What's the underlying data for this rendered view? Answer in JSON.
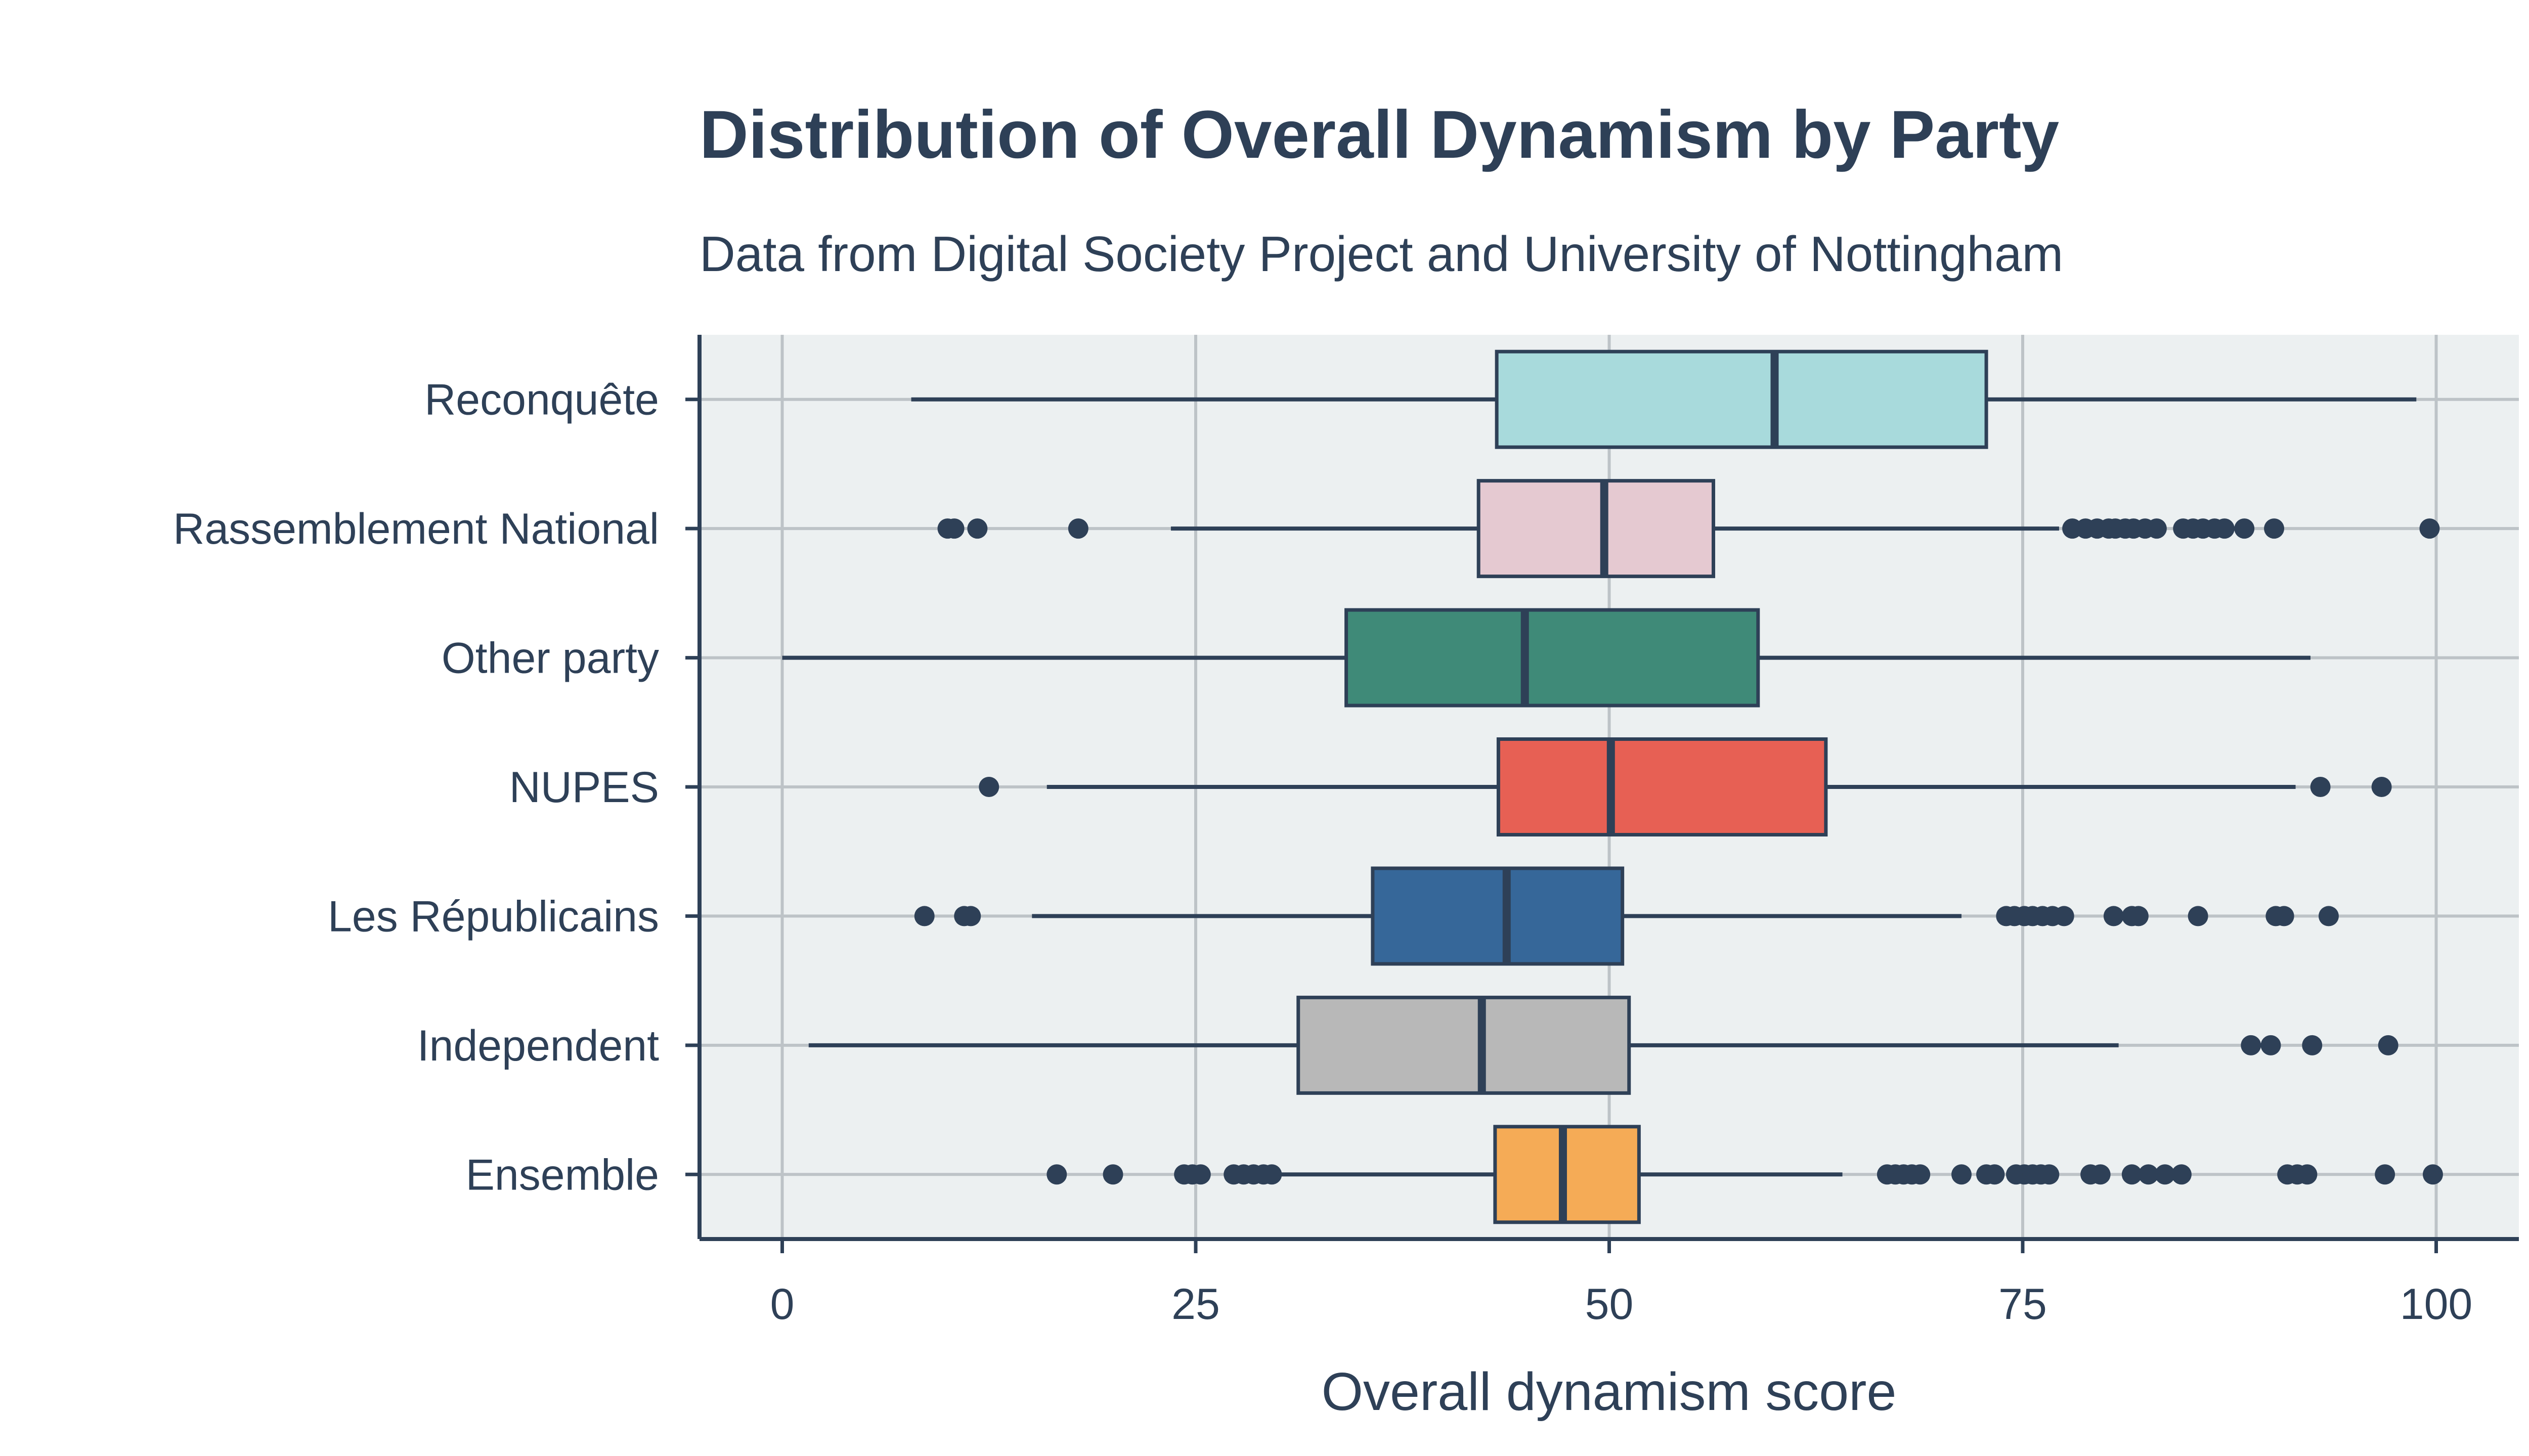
{
  "chart_data": {
    "type": "boxplot",
    "orientation": "horizontal",
    "title": "Distribution of Overall Dynamism by Party",
    "subtitle": "Data from Digital Society Project and University of Nottingham",
    "xlabel": "Overall dynamism score",
    "ylabel": "",
    "xlim": [
      -5,
      105
    ],
    "x_ticks": [
      0,
      25,
      50,
      75,
      100
    ],
    "grid": true,
    "legend": "none",
    "colors": {
      "text": "#2e4057",
      "panel_background": "#ecf0f1",
      "grid": "#bdc3c7",
      "box_outline": "#2e4057",
      "outlier": "#2e4057"
    },
    "categories": [
      "Reconquête",
      "Rassemblement National",
      "Other party",
      "NUPES",
      "Les Républicains",
      "Independent",
      "Ensemble"
    ],
    "series": [
      {
        "category": "Reconquête",
        "color": "#a8dadc",
        "whisker_low": 7.8,
        "q1": 43.2,
        "median": 60.0,
        "q3": 72.8,
        "whisker_high": 98.8,
        "outliers": []
      },
      {
        "category": "Rassemblement National",
        "color": "#e5c9d1",
        "whisker_low": 23.5,
        "q1": 42.1,
        "median": 49.7,
        "q3": 56.3,
        "whisker_high": 77.2,
        "outliers": [
          10.0,
          10.4,
          11.8,
          17.9,
          78.0,
          78.8,
          79.5,
          80.2,
          80.6,
          81.2,
          81.7,
          82.4,
          83.1,
          84.7,
          85.3,
          85.9,
          86.6,
          87.2,
          88.4,
          90.2,
          99.6
        ]
      },
      {
        "category": "Other party",
        "color": "#3f8a78",
        "whisker_low": 0.0,
        "q1": 34.1,
        "median": 44.9,
        "q3": 59.0,
        "whisker_high": 92.4,
        "outliers": []
      },
      {
        "category": "NUPES",
        "color": "#e76054",
        "whisker_low": 16.0,
        "q1": 43.3,
        "median": 50.1,
        "q3": 63.1,
        "whisker_high": 91.5,
        "outliers": [
          12.5,
          93.0,
          96.7
        ]
      },
      {
        "category": "Les Républicains",
        "color": "#366799",
        "whisker_low": 15.1,
        "q1": 35.7,
        "median": 43.8,
        "q3": 50.8,
        "whisker_high": 71.3,
        "outliers": [
          8.6,
          11.0,
          11.4,
          74.0,
          74.5,
          75.1,
          75.6,
          76.2,
          76.8,
          77.5,
          80.5,
          81.6,
          82.0,
          85.6,
          90.3,
          90.8,
          93.5
        ]
      },
      {
        "category": "Independent",
        "color": "#b8b8b8",
        "whisker_low": 1.6,
        "q1": 31.2,
        "median": 42.3,
        "q3": 51.2,
        "whisker_high": 80.8,
        "outliers": [
          88.8,
          90.0,
          92.5,
          97.1
        ]
      },
      {
        "category": "Ensemble",
        "color": "#f5ab56",
        "whisker_low": 30.0,
        "q1": 43.1,
        "median": 47.2,
        "q3": 51.8,
        "whisker_high": 64.1,
        "outliers": [
          16.6,
          20.0,
          24.3,
          24.8,
          25.3,
          27.3,
          27.9,
          28.5,
          29.1,
          29.6,
          66.8,
          67.3,
          67.8,
          68.3,
          68.8,
          71.3,
          72.8,
          73.3,
          74.6,
          75.1,
          75.6,
          76.1,
          76.6,
          79.1,
          79.7,
          81.6,
          82.6,
          83.6,
          84.6,
          91.0,
          91.6,
          92.2,
          96.9,
          99.8
        ]
      }
    ]
  }
}
